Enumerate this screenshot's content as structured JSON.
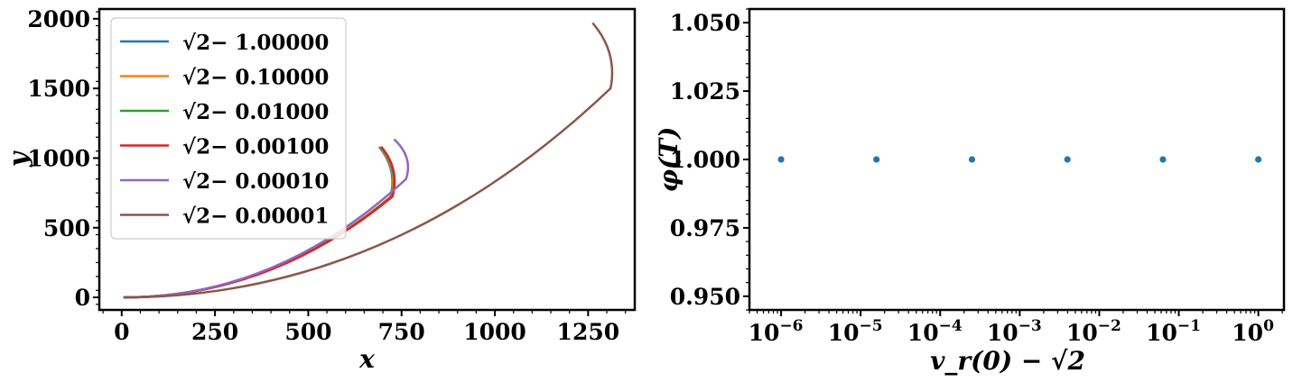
{
  "chart_data": [
    {
      "type": "line",
      "title": "",
      "xlabel": "x",
      "ylabel": "y",
      "xlim": [
        -60,
        1375
      ],
      "ylim": [
        -90,
        2070
      ],
      "xticks": [
        0,
        250,
        500,
        750,
        1000,
        1250
      ],
      "yticks": [
        0,
        500,
        1000,
        1500,
        2000
      ],
      "grid": false,
      "legend_position": "upper-left",
      "series": [
        {
          "name": "√2− 1.00000",
          "color": "#1f77b4",
          "endpoint": [
            690,
            1080
          ],
          "tip": [
            720,
            720
          ]
        },
        {
          "name": "√2− 0.10000",
          "color": "#ff7f0e",
          "endpoint": [
            692,
            1080
          ],
          "tip": [
            722,
            725
          ]
        },
        {
          "name": "√2− 0.01000",
          "color": "#2ca02c",
          "endpoint": [
            694,
            1080
          ],
          "tip": [
            724,
            725
          ]
        },
        {
          "name": "√2− 0.00100",
          "color": "#d62728",
          "endpoint": [
            696,
            1080
          ],
          "tip": [
            726,
            725
          ]
        },
        {
          "name": "√2− 0.00010",
          "color": "#9467bd",
          "endpoint": [
            730,
            1135
          ],
          "tip": [
            762,
            850
          ]
        },
        {
          "name": "√2− 0.00001",
          "color": "#8c564b",
          "endpoint": [
            1262,
            1970
          ],
          "tip": [
            1310,
            1500
          ]
        }
      ]
    },
    {
      "type": "scatter",
      "title": "",
      "xlabel": "v_r(0) − √2",
      "ylabel": "φ(T)",
      "xscale": "log",
      "xlim": [
        4e-07,
        2.1
      ],
      "ylim": [
        0.945,
        1.055
      ],
      "xticks": [
        1e-06,
        1e-05,
        0.0001,
        0.001,
        0.01,
        0.1,
        1
      ],
      "xtick_exponents": [
        "−6",
        "−5",
        "−4",
        "−3",
        "−2",
        "−1",
        "0"
      ],
      "xtick_base": "10",
      "yticks": [
        "0.950",
        "0.975",
        "1.000",
        "1.025",
        "1.050"
      ],
      "grid": false,
      "color": "#1f77b4",
      "points": [
        {
          "x": 1e-06,
          "y": 1.0
        },
        {
          "x": 1.58e-05,
          "y": 1.0
        },
        {
          "x": 0.000251,
          "y": 1.0
        },
        {
          "x": 0.00398,
          "y": 1.0
        },
        {
          "x": 0.0631,
          "y": 1.0
        },
        {
          "x": 1.0,
          "y": 1.0
        }
      ]
    }
  ]
}
